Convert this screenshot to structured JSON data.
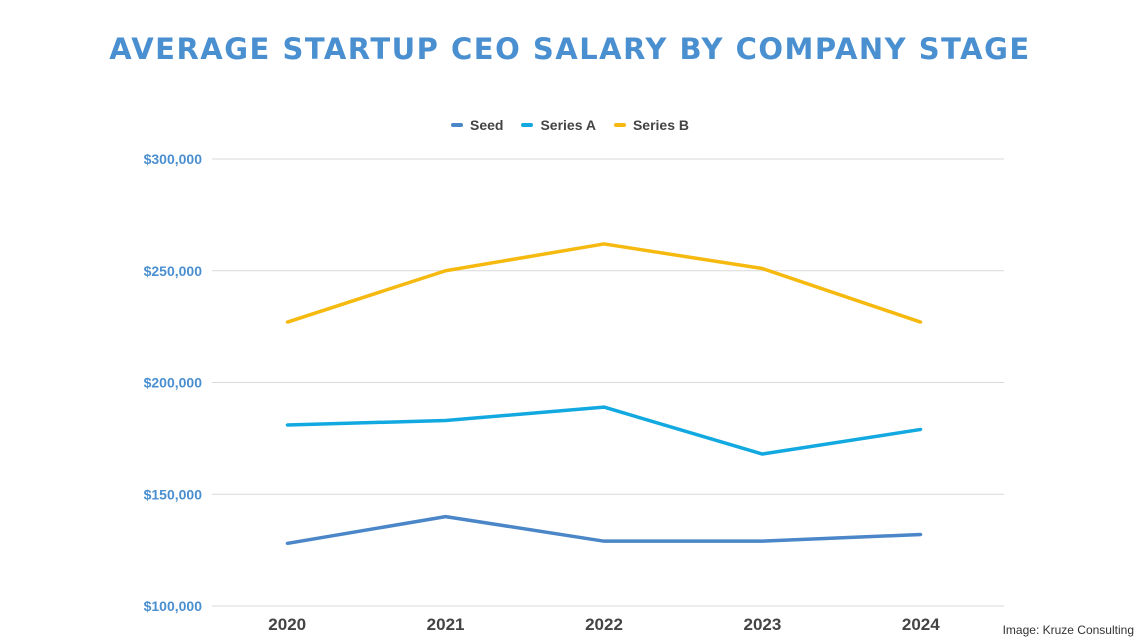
{
  "chart_data": {
    "type": "line",
    "title": "AVERAGE STARTUP CEO SALARY BY COMPANY STAGE",
    "categories": [
      "2020",
      "2021",
      "2022",
      "2023",
      "2024"
    ],
    "series": [
      {
        "name": "Seed",
        "color": "#4a86c8",
        "values": [
          128000,
          140000,
          129000,
          129000,
          132000
        ]
      },
      {
        "name": "Series A",
        "color": "#12a9e0",
        "values": [
          181000,
          183000,
          189000,
          168000,
          179000
        ]
      },
      {
        "name": "Series B",
        "color": "#f5b90f",
        "values": [
          227000,
          250000,
          262000,
          251000,
          227000
        ]
      }
    ],
    "ylim": [
      100000,
      300000
    ],
    "yticks": [
      "$100,000",
      "$150,000",
      "$200,000",
      "$250,000",
      "$300,000"
    ],
    "ytick_values": [
      100000,
      150000,
      200000,
      250000,
      300000
    ],
    "grid": true,
    "legend_position": "top-center",
    "title_color": "#4a8fd0",
    "ytick_color": "#4a8fd0"
  },
  "credit": "Image: Kruze Consulting"
}
